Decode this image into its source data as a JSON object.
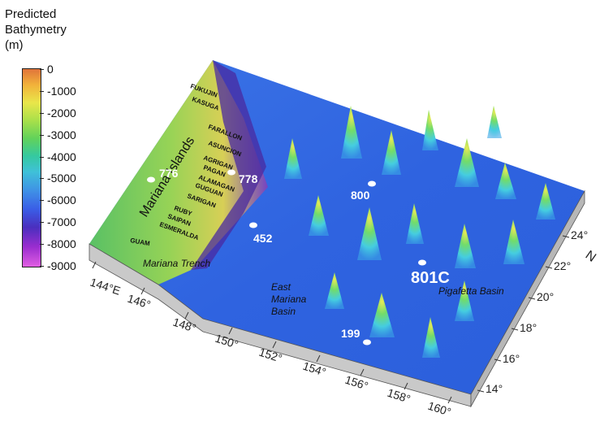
{
  "legend": {
    "title_line1": "Predicted",
    "title_line2": "Bathymetry",
    "title_line3": "(m)",
    "ticks": [
      "0",
      "-1000",
      "-2000",
      "-3000",
      "-4000",
      "-5000",
      "-6000",
      "-7000",
      "-8000",
      "-9000"
    ]
  },
  "axes": {
    "longitude": [
      "144°E",
      "146°",
      "148°",
      "150°",
      "152°",
      "154°",
      "156°",
      "158°",
      "160°"
    ],
    "latitude": [
      "14°",
      "16°",
      "18°",
      "20°",
      "22°",
      "24°"
    ],
    "lat_title": "N"
  },
  "islands": [
    "FUKUJIN",
    "KASUGA",
    "FARALLON",
    "ASUNCION",
    "AGRIGAN",
    "PAGAN",
    "ALAMAGAN",
    "GUGUAN",
    "SARIGAN",
    "RUBY",
    "SAIPAN",
    "ESMERALDA",
    "GUAM"
  ],
  "features": {
    "mariana_islands": "Mariana Islands",
    "mariana_trench": "Mariana Trench",
    "east_mariana_line1": "East",
    "east_mariana_line2": "Mariana",
    "east_mariana_line3": "Basin",
    "pigafetta": "Pigafetta Basin"
  },
  "sites": [
    "776",
    "778",
    "800",
    "452",
    "801C",
    "199"
  ],
  "colors": {
    "deep_basin": "#2f63e0",
    "arc_green": "#6fd04a",
    "trench_purple": "#5a2aa8",
    "seamount_cyan": "#4fd4e6",
    "peak_yellow": "#e6e04a",
    "wall_gray": "#c9c9c9"
  }
}
